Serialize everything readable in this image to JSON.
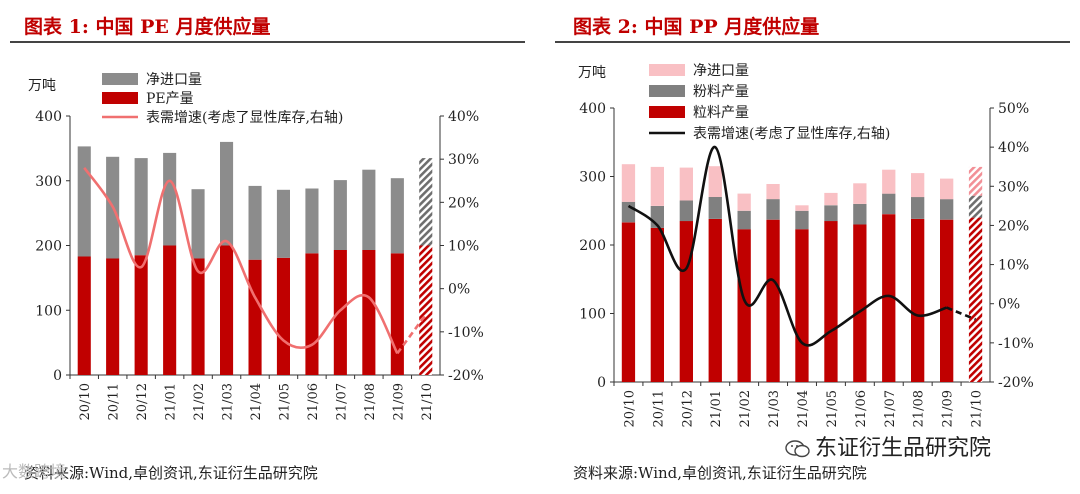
{
  "colors": {
    "title": "#c00000",
    "pe_net_import": "#8c8c8c",
    "pe_production": "#c00000",
    "pe_demand_line": "#f07070",
    "pp_net_import": "#f9c0c4",
    "pp_powder": "#808080",
    "pp_pellet": "#c00000",
    "pp_demand_line": "#111111"
  },
  "left": {
    "title": "图表 1:  中国 PE 月度供应量",
    "source": "资料来源:Wind,卓创资讯,东证衍生品研究院"
  },
  "right": {
    "title": "图表 2:  中国 PP 月度供应量",
    "source": "资料来源:Wind,卓创资讯,东证衍生品研究院"
  },
  "watermark": "东证衍生品研究院",
  "corner_mark": "大数跨境",
  "chart_data": [
    {
      "type": "bar",
      "stacked": true,
      "unit": "万吨",
      "categories": [
        "20/10",
        "20/11",
        "20/12",
        "21/01",
        "21/02",
        "21/03",
        "21/04",
        "21/05",
        "21/06",
        "21/07",
        "21/08",
        "21/09",
        "21/10"
      ],
      "series": [
        {
          "name": "PE产量",
          "values": [
            183,
            180,
            185,
            200,
            180,
            200,
            178,
            181,
            188,
            193,
            193,
            188,
            200
          ]
        },
        {
          "name": "净进口量",
          "values": [
            170,
            157,
            150,
            143,
            107,
            160,
            114,
            105,
            100,
            108,
            124,
            116,
            135
          ]
        }
      ],
      "line": {
        "name": "表需增速(考虑了显性库存,右轴)",
        "values": [
          28,
          19,
          5,
          25,
          4,
          11,
          -2,
          -12,
          -13,
          -5,
          -2,
          -15,
          -6
        ]
      },
      "forecast_index": 12,
      "ylim": [
        0,
        400
      ],
      "yticks": [
        0,
        100,
        200,
        300,
        400
      ],
      "y2lim": [
        -20,
        40
      ],
      "y2ticks": [
        "-20%",
        "-10%",
        "0%",
        "10%",
        "20%",
        "30%",
        "40%"
      ],
      "legend": [
        {
          "key": "净进口量",
          "label": "净进口量",
          "kind": "bar"
        },
        {
          "key": "PE产量",
          "label": "PE产量",
          "kind": "bar"
        },
        {
          "key": "line",
          "label": "表需增速(考虑了显性库存,右轴)",
          "kind": "line"
        }
      ]
    },
    {
      "type": "bar",
      "stacked": true,
      "unit": "万吨",
      "categories": [
        "20/10",
        "20/11",
        "20/12",
        "21/01",
        "21/02",
        "21/03",
        "21/04",
        "21/05",
        "21/06",
        "21/07",
        "21/08",
        "21/09",
        "21/10"
      ],
      "series": [
        {
          "name": "粒料产量",
          "values": [
            233,
            225,
            235,
            238,
            223,
            237,
            223,
            235,
            230,
            245,
            238,
            237,
            240
          ]
        },
        {
          "name": "粉料产量",
          "values": [
            30,
            32,
            30,
            32,
            27,
            30,
            27,
            23,
            30,
            30,
            32,
            30,
            32
          ]
        },
        {
          "name": "净进口量",
          "values": [
            55,
            57,
            48,
            45,
            25,
            22,
            8,
            18,
            30,
            35,
            35,
            30,
            42
          ]
        }
      ],
      "line": {
        "name": "表需增速(考虑了显性库存,右轴)",
        "values": [
          25,
          20,
          9,
          40,
          1,
          6,
          -10,
          -7,
          -2,
          2,
          -3,
          -1,
          -4
        ]
      },
      "forecast_index": 12,
      "ylim": [
        0,
        400
      ],
      "yticks": [
        0,
        100,
        200,
        300,
        400
      ],
      "y2lim": [
        -20,
        50
      ],
      "y2ticks": [
        "-20%",
        "-10%",
        "0%",
        "10%",
        "20%",
        "30%",
        "40%",
        "50%"
      ],
      "legend": [
        {
          "key": "净进口量",
          "label": "净进口量",
          "kind": "bar"
        },
        {
          "key": "粉料产量",
          "label": "粉料产量",
          "kind": "bar"
        },
        {
          "key": "粒料产量",
          "label": "粒料产量",
          "kind": "bar"
        },
        {
          "key": "line",
          "label": "表需增速(考虑了显性库存,右轴)",
          "kind": "line"
        }
      ]
    }
  ]
}
